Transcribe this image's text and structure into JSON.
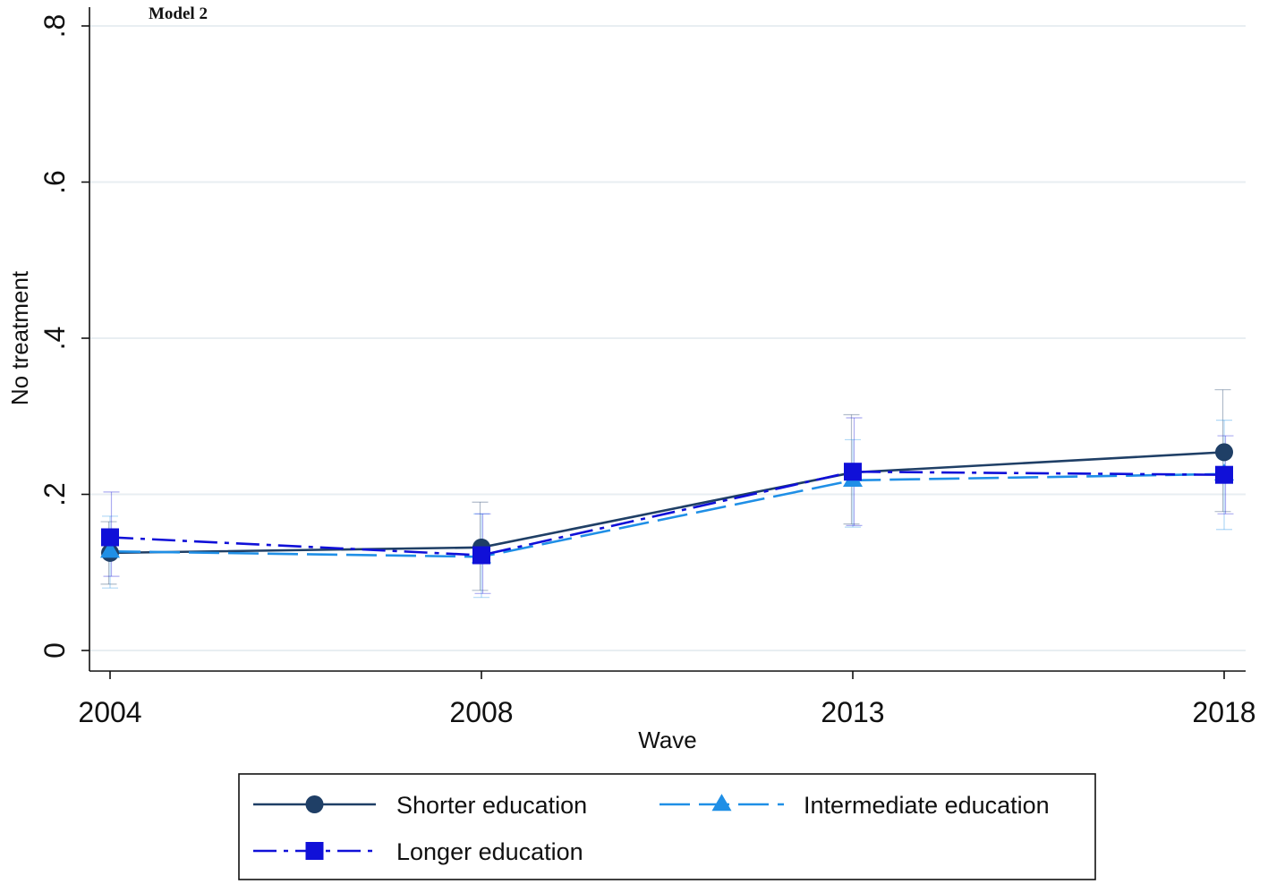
{
  "chart_data": {
    "type": "line",
    "title": "Model 2",
    "xlabel": "Wave",
    "ylabel": "No treatment",
    "x": [
      "2004",
      "2008",
      "2013",
      "2018"
    ],
    "ylim": [
      0,
      0.8
    ],
    "yticks": [
      0,
      0.2,
      0.4,
      0.6,
      0.8
    ],
    "ytick_labels": [
      "0",
      ".2",
      ".4",
      ".6",
      ".8"
    ],
    "grid": true,
    "legend_position": "bottom",
    "series": [
      {
        "name": "Shorter education",
        "color": "#1f3f66",
        "marker": "circle",
        "line_style": "solid",
        "values": [
          0.125,
          0.132,
          0.228,
          0.254
        ],
        "ci_low": [
          0.085,
          0.077,
          0.162,
          0.178
        ],
        "ci_high": [
          0.165,
          0.19,
          0.302,
          0.334
        ]
      },
      {
        "name": "Intermediate education",
        "color": "#1f8fe6",
        "marker": "triangle",
        "line_style": "dashed",
        "values": [
          0.127,
          0.12,
          0.218,
          0.226
        ],
        "ci_low": [
          0.08,
          0.068,
          0.158,
          0.155
        ],
        "ci_high": [
          0.172,
          0.175,
          0.27,
          0.295
        ]
      },
      {
        "name": "Longer education",
        "color": "#1010d8",
        "marker": "square",
        "line_style": "dashdot",
        "values": [
          0.145,
          0.122,
          0.229,
          0.225
        ],
        "ci_low": [
          0.095,
          0.073,
          0.16,
          0.175
        ],
        "ci_high": [
          0.203,
          0.175,
          0.298,
          0.275
        ]
      }
    ]
  }
}
